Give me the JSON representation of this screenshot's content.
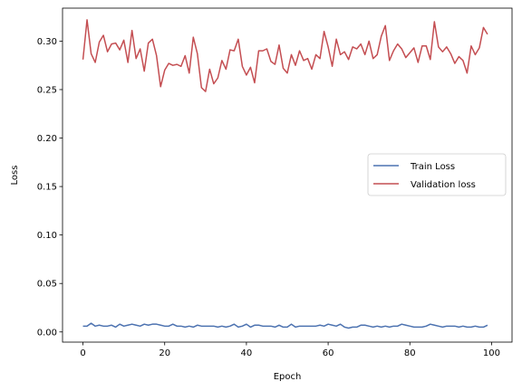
{
  "chart_data": {
    "type": "line",
    "xlabel": "Epoch",
    "ylabel": "Loss",
    "xlim": [
      -5,
      105
    ],
    "ylim": [
      -0.0105,
      0.334
    ],
    "xticks": [
      0,
      20,
      40,
      60,
      80,
      100
    ],
    "xtick_labels": [
      "0",
      "20",
      "40",
      "60",
      "80",
      "100"
    ],
    "yticks": [
      0.0,
      0.05,
      0.1,
      0.15,
      0.2,
      0.25,
      0.3
    ],
    "ytick_labels": [
      "0.00",
      "0.05",
      "0.10",
      "0.15",
      "0.20",
      "0.25",
      "0.30"
    ],
    "grid": false,
    "legend_position": "center-right",
    "x": [
      0,
      1,
      2,
      3,
      4,
      5,
      6,
      7,
      8,
      9,
      10,
      11,
      12,
      13,
      14,
      15,
      16,
      17,
      18,
      19,
      20,
      21,
      22,
      23,
      24,
      25,
      26,
      27,
      28,
      29,
      30,
      31,
      32,
      33,
      34,
      35,
      36,
      37,
      38,
      39,
      40,
      41,
      42,
      43,
      44,
      45,
      46,
      47,
      48,
      49,
      50,
      51,
      52,
      53,
      54,
      55,
      56,
      57,
      58,
      59,
      60,
      61,
      62,
      63,
      64,
      65,
      66,
      67,
      68,
      69,
      70,
      71,
      72,
      73,
      74,
      75,
      76,
      77,
      78,
      79,
      80,
      81,
      82,
      83,
      84,
      85,
      86,
      87,
      88,
      89,
      90,
      91,
      92,
      93,
      94,
      95,
      96,
      97,
      98,
      99
    ],
    "series": [
      {
        "name": "Train Loss",
        "color": "#4c72b0",
        "values": [
          0.006,
          0.006,
          0.009,
          0.006,
          0.007,
          0.006,
          0.006,
          0.007,
          0.005,
          0.008,
          0.006,
          0.007,
          0.008,
          0.007,
          0.006,
          0.008,
          0.007,
          0.008,
          0.008,
          0.007,
          0.006,
          0.006,
          0.008,
          0.006,
          0.006,
          0.005,
          0.006,
          0.005,
          0.007,
          0.006,
          0.006,
          0.006,
          0.006,
          0.005,
          0.006,
          0.005,
          0.006,
          0.008,
          0.005,
          0.006,
          0.008,
          0.005,
          0.007,
          0.007,
          0.006,
          0.006,
          0.006,
          0.005,
          0.007,
          0.005,
          0.005,
          0.008,
          0.005,
          0.006,
          0.006,
          0.006,
          0.006,
          0.006,
          0.007,
          0.006,
          0.008,
          0.007,
          0.006,
          0.008,
          0.005,
          0.004,
          0.005,
          0.005,
          0.007,
          0.007,
          0.006,
          0.005,
          0.006,
          0.005,
          0.006,
          0.005,
          0.006,
          0.006,
          0.008,
          0.007,
          0.006,
          0.005,
          0.005,
          0.005,
          0.006,
          0.008,
          0.007,
          0.006,
          0.005,
          0.006,
          0.006,
          0.006,
          0.005,
          0.006,
          0.005,
          0.005,
          0.006,
          0.005,
          0.005,
          0.007
        ]
      },
      {
        "name": "Validation loss",
        "color": "#c44e52",
        "values": [
          0.281,
          0.322,
          0.287,
          0.278,
          0.299,
          0.306,
          0.289,
          0.297,
          0.298,
          0.291,
          0.301,
          0.278,
          0.311,
          0.282,
          0.292,
          0.269,
          0.298,
          0.302,
          0.285,
          0.253,
          0.27,
          0.277,
          0.275,
          0.276,
          0.274,
          0.285,
          0.267,
          0.304,
          0.287,
          0.252,
          0.248,
          0.271,
          0.256,
          0.262,
          0.28,
          0.271,
          0.291,
          0.29,
          0.302,
          0.274,
          0.265,
          0.273,
          0.257,
          0.29,
          0.29,
          0.292,
          0.279,
          0.276,
          0.296,
          0.272,
          0.267,
          0.286,
          0.275,
          0.29,
          0.28,
          0.282,
          0.271,
          0.286,
          0.282,
          0.31,
          0.294,
          0.274,
          0.302,
          0.286,
          0.289,
          0.281,
          0.294,
          0.292,
          0.297,
          0.286,
          0.3,
          0.282,
          0.286,
          0.305,
          0.316,
          0.28,
          0.29,
          0.297,
          0.292,
          0.283,
          0.288,
          0.293,
          0.278,
          0.295,
          0.295,
          0.281,
          0.32,
          0.294,
          0.289,
          0.294,
          0.287,
          0.277,
          0.284,
          0.28,
          0.267,
          0.295,
          0.286,
          0.293,
          0.314,
          0.307
        ]
      }
    ]
  }
}
